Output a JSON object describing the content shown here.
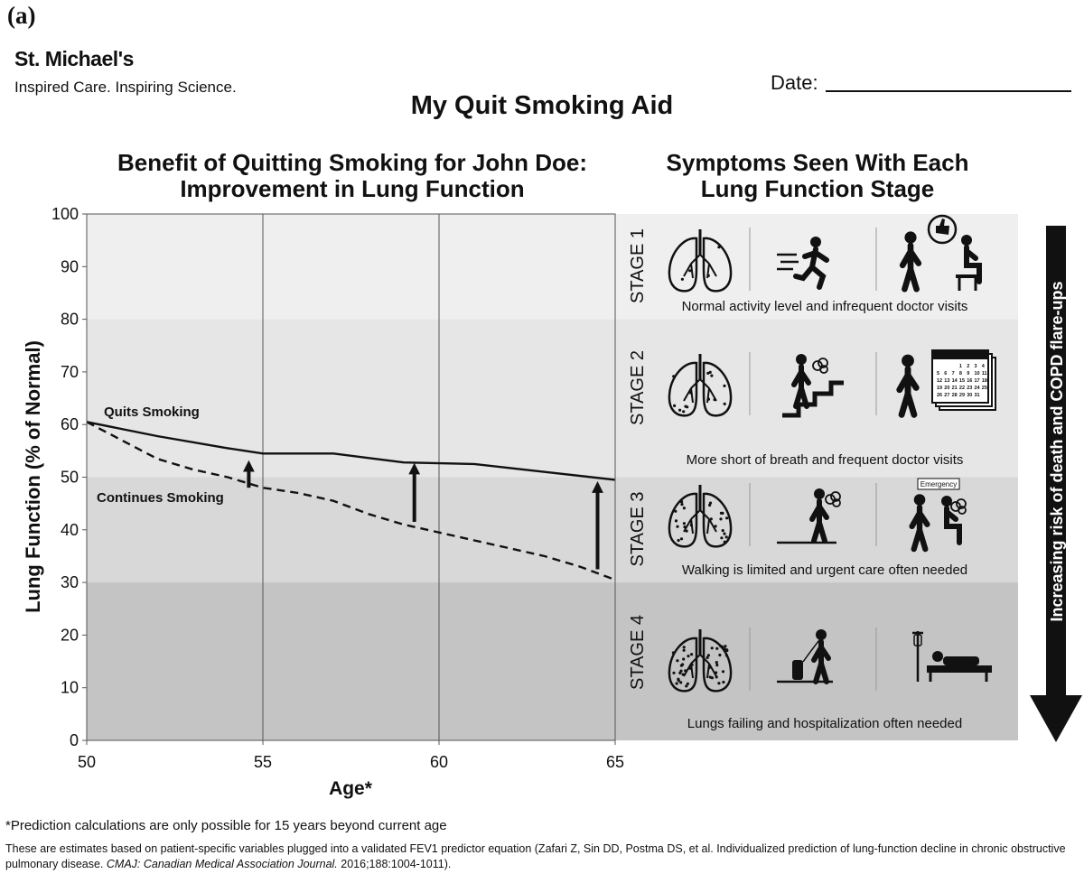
{
  "panel_label": "(a)",
  "header": {
    "org_name": "St. Michael's",
    "org_tagline": "Inspired Care. Inspiring Science.",
    "date_label": "Date:",
    "title": "My Quit Smoking Aid"
  },
  "chart_data": {
    "type": "line",
    "title": "Benefit of Quitting Smoking for John Doe: Improvement in Lung Function",
    "title_lines": [
      "Benefit of Quitting Smoking for John Doe:",
      "Improvement in Lung Function"
    ],
    "xlabel": "Age*",
    "ylabel": "Lung Function (% of Normal)",
    "xlim": [
      50,
      65
    ],
    "ylim": [
      0,
      100
    ],
    "xticks": [
      50,
      55,
      60,
      65
    ],
    "yticks": [
      0,
      10,
      20,
      30,
      40,
      50,
      60,
      70,
      80,
      90,
      100
    ],
    "vertical_gridlines_at": [
      55,
      60
    ],
    "stage_bands": [
      {
        "stage": "STAGE 1",
        "from": 80,
        "to": 100,
        "color": "#efefef"
      },
      {
        "stage": "STAGE 2",
        "from": 50,
        "to": 80,
        "color": "#e6e6e6"
      },
      {
        "stage": "STAGE 3",
        "from": 30,
        "to": 50,
        "color": "#d8d8d8"
      },
      {
        "stage": "STAGE 4",
        "from": 0,
        "to": 30,
        "color": "#c4c4c4"
      }
    ],
    "series": [
      {
        "name": "Quits Smoking",
        "style": "solid",
        "x": [
          50,
          52,
          54,
          55,
          57,
          59,
          61,
          63,
          65
        ],
        "y": [
          60.5,
          57.8,
          55.5,
          54.5,
          54.5,
          52.8,
          52.5,
          51.0,
          49.5
        ]
      },
      {
        "name": "Continues Smoking",
        "style": "dashed",
        "x": [
          50,
          51,
          52,
          53,
          54,
          55,
          56,
          57,
          58,
          59,
          60,
          61,
          62,
          63,
          64,
          65
        ],
        "y": [
          60.5,
          57.0,
          53.5,
          51.5,
          50.0,
          48.0,
          47.0,
          45.5,
          43.0,
          41.0,
          39.5,
          38.0,
          36.5,
          35.0,
          33.0,
          30.5
        ]
      }
    ],
    "arrows": [
      {
        "x": 54.6,
        "from": 48.0,
        "to": 53.5
      },
      {
        "x": 59.3,
        "from": 41.5,
        "to": 53.0
      },
      {
        "x": 64.5,
        "from": 32.5,
        "to": 49.5
      }
    ],
    "footnote": "*Prediction calculations are only possible for 15 years beyond current age"
  },
  "symptoms": {
    "title_lines": [
      "Symptoms Seen With Each",
      "Lung Function Stage"
    ],
    "stages": [
      {
        "label": "STAGE 1",
        "caption": "Normal activity level and infrequent doctor visits",
        "icons": [
          "lungs-icon",
          "running-person-icon",
          "doctor-patient-thumbs-up-icon"
        ]
      },
      {
        "label": "STAGE 2",
        "caption": "More short of breath and frequent doctor visits",
        "icons": [
          "lungs-icon",
          "climbing-stairs-breathless-icon",
          "doctor-calendar-icon"
        ]
      },
      {
        "label": "STAGE 3",
        "caption": "Walking is limited and urgent care often needed",
        "icons": [
          "lungs-icon",
          "walking-breathless-icon",
          "emergency-doctor-icon"
        ]
      },
      {
        "label": "STAGE 4",
        "caption": "Lungs failing and hospitalization often needed",
        "icons": [
          "lungs-icon",
          "walking-oxygen-tank-icon",
          "hospital-bed-icon"
        ]
      }
    ],
    "emergency_sign": "Emergency",
    "calendar_days": [
      "1",
      "2",
      "3",
      "4",
      "5",
      "6",
      "7",
      "8",
      "9",
      "10",
      "11",
      "12",
      "13",
      "14",
      "15",
      "16",
      "17",
      "18",
      "19",
      "20",
      "21",
      "22",
      "23",
      "24",
      "25",
      "26",
      "27",
      "28",
      "29",
      "30",
      "31"
    ],
    "risk_arrow_label": "Increasing risk of death and COPD flare-ups"
  },
  "reference": {
    "text_before": "These are estimates based on patient-specific variables plugged into a validated FEV1 predictor equation (Zafari Z, Sin DD, Postma DS, et al. Individualized prediction of lung-function decline in chronic obstructive pulmonary disease. ",
    "journal": "CMAJ: Canadian Medical Association Journal.",
    "text_after": " 2016;188:1004-1011)."
  }
}
